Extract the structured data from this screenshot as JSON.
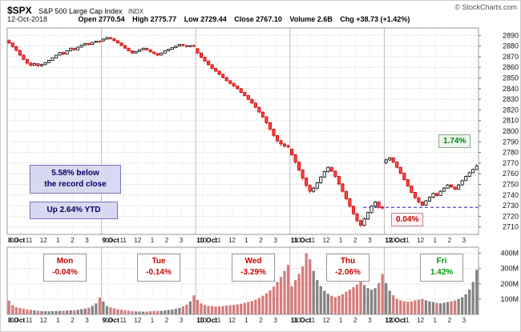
{
  "header": {
    "symbol": "$SPX",
    "name": "S&P 500 Large Cap Index",
    "exchange": "INDX",
    "copyright": "© StockCharts.com",
    "date": "12-Oct-2018",
    "quote": {
      "open_label": "Open",
      "open": "2770.54",
      "high_label": "High",
      "high": "2775.77",
      "low_label": "Low",
      "low": "2729.44",
      "close_label": "Close",
      "close": "2767.10",
      "volume_label": "Volume",
      "volume": "2.6B",
      "chg_label": "Chg",
      "chg": "+38.73 (+1.42%)"
    }
  },
  "annotations": {
    "below_record_line1": "5.58% below",
    "below_record_line2": "the record close",
    "ytd": "Up 2.64% YTD",
    "high_pct": "1.74%",
    "low_pct": "0.04%",
    "dashed_line_price": 2728.4
  },
  "day_labels": [
    {
      "name": "Mon",
      "pct": "-0.04%",
      "color": "#cc0000"
    },
    {
      "name": "Tue",
      "pct": "-0.14%",
      "color": "#cc0000"
    },
    {
      "name": "Wed",
      "pct": "-3.29%",
      "color": "#cc0000"
    },
    {
      "name": "Thu",
      "pct": "-2.06%",
      "color": "#cc0000"
    },
    {
      "name": "Fri",
      "pct": "1.42%",
      "color": "#009900"
    }
  ],
  "colors": {
    "candle_up_stroke": "#000000",
    "candle_up_fill": "#ffffff",
    "candle_down_stroke": "#cc0000",
    "candle_down_fill": "#ff4444",
    "volume_up": "rgba(90,90,90,0.75)",
    "volume_down": "rgba(200,80,80,0.75)",
    "dashed_line": "#2222bb",
    "positive": "#009900",
    "negative": "#cc0000"
  },
  "chart_data": {
    "type": "candlestick",
    "title": "$SPX S&P 500 Large Cap Index (INDX) — 12-Oct-2018, 5-day 15-min intraday with volume",
    "price_axis": {
      "min": 2703,
      "max": 2897,
      "ticks": [
        2710,
        2720,
        2730,
        2740,
        2750,
        2760,
        2770,
        2780,
        2790,
        2800,
        2810,
        2820,
        2830,
        2840,
        2850,
        2860,
        2870,
        2880,
        2890
      ]
    },
    "volume_axis": {
      "max": 440,
      "unit": "M",
      "ticks": [
        100,
        200,
        300,
        400
      ]
    },
    "hour_ticks": {
      "labels": [
        "10",
        "11",
        "12",
        "1",
        "2",
        "3"
      ],
      "offsets": [
        2,
        6,
        10,
        14,
        18,
        22
      ]
    },
    "days": [
      {
        "label": "8 Oct",
        "change_pct": -0.04,
        "bars": [
          [
            2885.2,
            2886.8,
            2882.0,
            2883.0,
            90
          ],
          [
            2883.0,
            2883.5,
            2878.5,
            2879.5,
            60
          ],
          [
            2879.5,
            2880.0,
            2875.0,
            2876.0,
            48
          ],
          [
            2876.0,
            2876.5,
            2870.5,
            2871.5,
            42
          ],
          [
            2871.5,
            2872.0,
            2866.5,
            2867.5,
            38
          ],
          [
            2867.5,
            2868.0,
            2862.5,
            2864.0,
            33
          ],
          [
            2864.0,
            2865.0,
            2860.5,
            2862.0,
            30
          ],
          [
            2862.0,
            2864.5,
            2861.5,
            2863.5,
            26
          ],
          [
            2863.5,
            2864.0,
            2860.5,
            2861.5,
            24
          ],
          [
            2861.5,
            2863.5,
            2861.0,
            2862.5,
            22
          ],
          [
            2862.5,
            2865.0,
            2862.0,
            2864.5,
            21
          ],
          [
            2864.5,
            2867.0,
            2864.0,
            2866.5,
            20
          ],
          [
            2866.5,
            2869.5,
            2866.0,
            2869.0,
            21
          ],
          [
            2869.0,
            2872.0,
            2868.5,
            2871.5,
            22
          ],
          [
            2871.5,
            2874.5,
            2871.0,
            2874.0,
            23
          ],
          [
            2874.0,
            2874.5,
            2871.5,
            2872.5,
            24
          ],
          [
            2872.5,
            2876.0,
            2872.0,
            2875.5,
            25
          ],
          [
            2875.5,
            2878.5,
            2875.0,
            2878.0,
            27
          ],
          [
            2878.0,
            2878.5,
            2875.5,
            2876.5,
            26
          ],
          [
            2876.5,
            2879.5,
            2876.0,
            2879.0,
            30
          ],
          [
            2879.0,
            2881.5,
            2878.5,
            2881.0,
            34
          ],
          [
            2881.0,
            2883.0,
            2880.5,
            2882.5,
            38
          ],
          [
            2882.5,
            2883.0,
            2880.5,
            2881.5,
            44
          ],
          [
            2881.5,
            2884.0,
            2881.0,
            2883.5,
            56
          ],
          [
            2883.5,
            2885.0,
            2883.0,
            2884.5,
            72
          ],
          [
            2884.5,
            2885.5,
            2883.5,
            2884.4,
            110
          ]
        ]
      },
      {
        "label": "9 Oct",
        "change_pct": -0.14,
        "bars": [
          [
            2884.8,
            2887.5,
            2884.0,
            2886.5,
            85
          ],
          [
            2886.5,
            2889.0,
            2886.0,
            2888.0,
            55
          ],
          [
            2888.0,
            2888.5,
            2886.0,
            2887.0,
            46
          ],
          [
            2887.0,
            2887.5,
            2884.5,
            2885.0,
            40
          ],
          [
            2885.0,
            2885.5,
            2882.5,
            2883.0,
            34
          ],
          [
            2883.0,
            2883.5,
            2880.0,
            2880.5,
            30
          ],
          [
            2880.5,
            2881.0,
            2877.5,
            2878.0,
            27
          ],
          [
            2878.0,
            2878.5,
            2875.0,
            2875.5,
            24
          ],
          [
            2875.5,
            2876.0,
            2872.5,
            2873.5,
            22
          ],
          [
            2873.5,
            2875.5,
            2873.0,
            2875.0,
            20
          ],
          [
            2875.0,
            2877.0,
            2874.5,
            2876.5,
            19
          ],
          [
            2876.5,
            2878.5,
            2876.0,
            2878.0,
            18
          ],
          [
            2878.0,
            2878.5,
            2875.5,
            2876.5,
            19
          ],
          [
            2876.5,
            2877.0,
            2874.0,
            2874.5,
            21
          ],
          [
            2874.5,
            2875.0,
            2872.0,
            2873.0,
            23
          ],
          [
            2873.0,
            2873.5,
            2870.5,
            2871.5,
            22
          ],
          [
            2871.5,
            2874.0,
            2871.0,
            2873.5,
            23
          ],
          [
            2873.5,
            2876.0,
            2873.0,
            2875.5,
            26
          ],
          [
            2875.5,
            2877.5,
            2875.0,
            2877.0,
            29
          ],
          [
            2877.0,
            2879.0,
            2876.5,
            2878.5,
            32
          ],
          [
            2878.5,
            2880.5,
            2878.0,
            2880.0,
            37
          ],
          [
            2880.0,
            2882.0,
            2879.5,
            2881.5,
            42
          ],
          [
            2881.5,
            2882.0,
            2879.5,
            2880.5,
            52
          ],
          [
            2880.5,
            2881.0,
            2878.5,
            2879.5,
            64
          ],
          [
            2879.5,
            2881.0,
            2879.0,
            2880.5,
            85
          ],
          [
            2880.5,
            2881.5,
            2879.5,
            2880.3,
            125
          ]
        ]
      },
      {
        "label": "10 Oct",
        "change_pct": -3.29,
        "bars": [
          [
            2877.5,
            2878.0,
            2872.5,
            2873.5,
            95
          ],
          [
            2873.5,
            2874.0,
            2868.5,
            2869.5,
            72
          ],
          [
            2869.5,
            2870.0,
            2865.0,
            2866.0,
            62
          ],
          [
            2866.0,
            2866.5,
            2861.5,
            2862.5,
            56
          ],
          [
            2862.5,
            2863.0,
            2858.0,
            2859.0,
            54
          ],
          [
            2859.0,
            2859.5,
            2855.5,
            2856.5,
            52
          ],
          [
            2856.5,
            2857.0,
            2852.5,
            2853.5,
            53
          ],
          [
            2853.5,
            2854.0,
            2849.5,
            2850.5,
            55
          ],
          [
            2850.5,
            2851.0,
            2846.5,
            2847.5,
            58
          ],
          [
            2847.5,
            2848.0,
            2844.0,
            2845.0,
            60
          ],
          [
            2845.0,
            2845.5,
            2841.5,
            2842.5,
            62
          ],
          [
            2842.5,
            2843.0,
            2839.0,
            2840.0,
            65
          ],
          [
            2840.0,
            2840.5,
            2835.5,
            2836.5,
            70
          ],
          [
            2836.5,
            2837.0,
            2832.5,
            2833.5,
            76
          ],
          [
            2833.5,
            2834.0,
            2829.0,
            2830.0,
            82
          ],
          [
            2830.0,
            2830.5,
            2825.5,
            2826.5,
            88
          ],
          [
            2826.5,
            2827.0,
            2821.5,
            2822.5,
            96
          ],
          [
            2822.5,
            2823.0,
            2817.0,
            2818.0,
            108
          ],
          [
            2818.0,
            2818.5,
            2812.0,
            2813.5,
            122
          ],
          [
            2813.5,
            2814.0,
            2806.5,
            2808.0,
            138
          ],
          [
            2808.0,
            2808.5,
            2800.5,
            2802.0,
            158
          ],
          [
            2802.0,
            2802.5,
            2794.5,
            2796.0,
            182
          ],
          [
            2796.0,
            2796.5,
            2789.0,
            2791.0,
            212
          ],
          [
            2791.0,
            2792.0,
            2786.0,
            2788.0,
            245
          ],
          [
            2788.0,
            2789.0,
            2784.5,
            2786.0,
            285
          ],
          [
            2786.0,
            2787.5,
            2784.0,
            2785.7,
            325
          ]
        ]
      },
      {
        "label": "11 Oct",
        "change_pct": -2.06,
        "bars": [
          [
            2783.0,
            2784.0,
            2776.5,
            2778.0,
            185
          ],
          [
            2778.0,
            2778.5,
            2769.5,
            2771.0,
            225
          ],
          [
            2771.0,
            2771.5,
            2762.0,
            2763.5,
            265
          ],
          [
            2763.5,
            2764.0,
            2754.0,
            2756.0,
            315
          ],
          [
            2756.0,
            2756.5,
            2747.0,
            2749.0,
            400
          ],
          [
            2749.0,
            2750.0,
            2741.5,
            2743.5,
            360
          ],
          [
            2743.5,
            2748.0,
            2742.0,
            2746.5,
            285
          ],
          [
            2746.5,
            2752.5,
            2745.5,
            2751.5,
            225
          ],
          [
            2751.5,
            2758.0,
            2750.5,
            2757.0,
            185
          ],
          [
            2757.0,
            2763.0,
            2756.0,
            2762.0,
            155
          ],
          [
            2762.0,
            2767.0,
            2761.0,
            2766.0,
            135
          ],
          [
            2766.0,
            2766.5,
            2761.5,
            2762.5,
            122
          ],
          [
            2762.5,
            2763.0,
            2756.0,
            2757.5,
            112
          ],
          [
            2757.5,
            2758.0,
            2749.0,
            2750.5,
            122
          ],
          [
            2750.5,
            2751.0,
            2742.0,
            2743.5,
            132
          ],
          [
            2743.5,
            2744.0,
            2735.0,
            2736.5,
            148
          ],
          [
            2736.5,
            2737.0,
            2728.0,
            2729.5,
            162
          ],
          [
            2729.5,
            2730.0,
            2721.0,
            2722.5,
            178
          ],
          [
            2722.5,
            2723.0,
            2714.0,
            2716.0,
            195
          ],
          [
            2716.0,
            2716.5,
            2710.0,
            2711.5,
            215
          ],
          [
            2711.5,
            2719.0,
            2710.5,
            2717.5,
            192
          ],
          [
            2717.5,
            2724.5,
            2716.5,
            2723.5,
            172
          ],
          [
            2723.5,
            2730.5,
            2722.5,
            2729.5,
            162
          ],
          [
            2729.5,
            2734.5,
            2728.5,
            2733.5,
            172
          ],
          [
            2733.5,
            2734.0,
            2727.0,
            2728.5,
            205
          ],
          [
            2728.5,
            2730.0,
            2726.5,
            2728.4,
            265
          ]
        ]
      },
      {
        "label": "12 Oct",
        "change_pct": 1.42,
        "bars": [
          [
            2770.5,
            2774.5,
            2769.0,
            2773.0,
            205
          ],
          [
            2773.0,
            2775.8,
            2772.0,
            2775.0,
            155
          ],
          [
            2775.0,
            2775.5,
            2770.0,
            2771.0,
            125
          ],
          [
            2771.0,
            2771.5,
            2765.0,
            2766.0,
            102
          ],
          [
            2766.0,
            2766.5,
            2759.5,
            2760.5,
            92
          ],
          [
            2760.5,
            2761.0,
            2753.5,
            2754.5,
            86
          ],
          [
            2754.5,
            2755.0,
            2747.5,
            2748.5,
            82
          ],
          [
            2748.5,
            2749.0,
            2741.5,
            2742.5,
            86
          ],
          [
            2742.5,
            2743.0,
            2736.0,
            2737.5,
            92
          ],
          [
            2737.5,
            2738.0,
            2732.0,
            2733.5,
            97
          ],
          [
            2733.5,
            2734.0,
            2729.4,
            2730.5,
            102
          ],
          [
            2730.5,
            2735.5,
            2730.0,
            2734.5,
            92
          ],
          [
            2734.5,
            2739.0,
            2733.5,
            2738.0,
            86
          ],
          [
            2738.0,
            2742.5,
            2737.0,
            2741.5,
            81
          ],
          [
            2741.5,
            2742.0,
            2738.5,
            2739.5,
            76
          ],
          [
            2739.5,
            2744.5,
            2739.0,
            2743.5,
            72
          ],
          [
            2743.5,
            2747.5,
            2743.0,
            2746.5,
            76
          ],
          [
            2746.5,
            2750.5,
            2746.0,
            2749.5,
            81
          ],
          [
            2749.5,
            2750.0,
            2746.5,
            2747.5,
            86
          ],
          [
            2747.5,
            2748.0,
            2744.5,
            2745.5,
            91
          ],
          [
            2745.5,
            2750.5,
            2745.0,
            2749.5,
            101
          ],
          [
            2749.5,
            2754.5,
            2749.0,
            2753.5,
            112
          ],
          [
            2753.5,
            2758.5,
            2753.0,
            2757.5,
            132
          ],
          [
            2757.5,
            2762.0,
            2757.0,
            2761.0,
            162
          ],
          [
            2761.0,
            2765.0,
            2760.5,
            2764.0,
            212
          ],
          [
            2764.0,
            2769.0,
            2763.5,
            2767.1,
            292
          ]
        ]
      }
    ]
  }
}
